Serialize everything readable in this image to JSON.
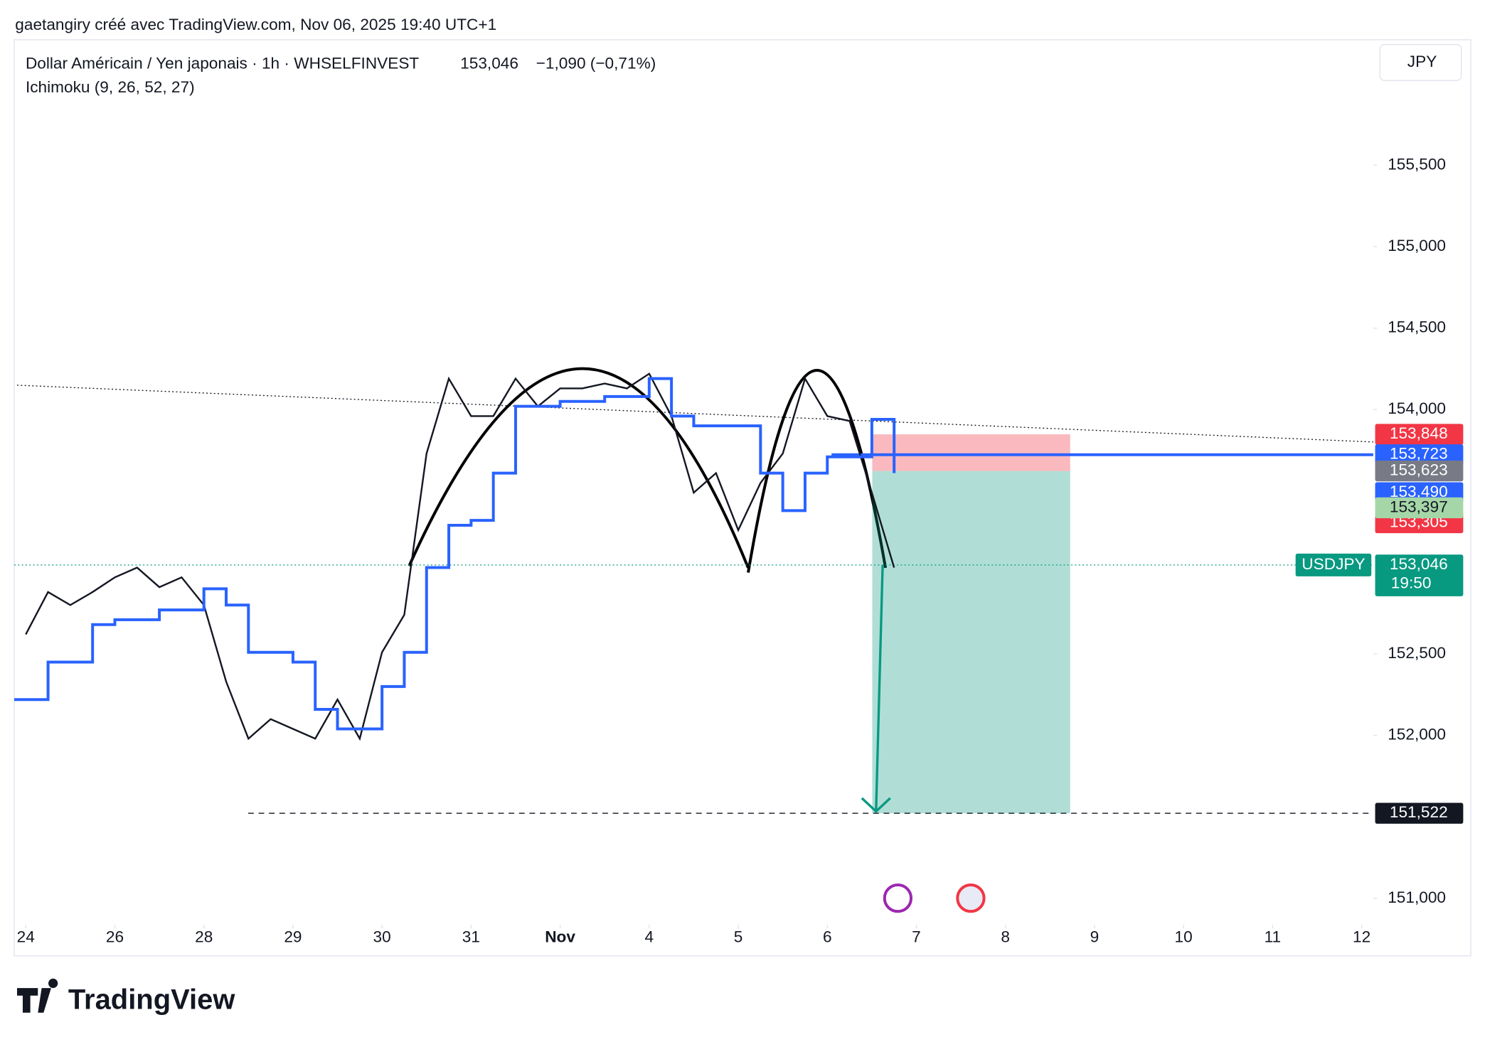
{
  "header": {
    "credit": "gaetangiry créé avec TradingView.com, Nov 06, 2025 19:40 UTC+1",
    "symbol": "Dollar Américain / Yen japonais · 1h · WHSELFINVEST",
    "last": "153,046",
    "change": "−1,090 (−0,71%)",
    "indicator": "Ichimoku (9, 26, 52, 27)",
    "currency": "JPY",
    "ticker": "USDJPY",
    "logo": "TradingView"
  },
  "chart_data": {
    "type": "line",
    "xlim": [
      -0.13,
      15.13
    ],
    "xticks": [
      {
        "value": 0,
        "label": "24"
      },
      {
        "value": 1,
        "label": "26"
      },
      {
        "value": 2,
        "label": "28"
      },
      {
        "value": 3,
        "label": "29"
      },
      {
        "value": 4,
        "label": "30"
      },
      {
        "value": 5,
        "label": "31"
      },
      {
        "value": 6,
        "label": "Nov"
      },
      {
        "value": 7,
        "label": "4"
      },
      {
        "value": 8,
        "label": "5"
      },
      {
        "value": 9,
        "label": "6"
      },
      {
        "value": 10,
        "label": "7"
      },
      {
        "value": 11,
        "label": "8"
      },
      {
        "value": 12,
        "label": "9"
      },
      {
        "value": 13,
        "label": "10"
      },
      {
        "value": 14,
        "label": "11"
      },
      {
        "value": 15,
        "label": "12"
      }
    ],
    "ylim": [
      150.85,
      156.27
    ],
    "yticks": [
      {
        "value": 151,
        "label": "151,000"
      },
      {
        "value": 152,
        "label": "152,000"
      },
      {
        "value": 152.5,
        "label": "152,500"
      },
      {
        "value": 154,
        "label": "154,000"
      },
      {
        "value": 154.5,
        "label": "154,500"
      },
      {
        "value": 155,
        "label": "155,000"
      },
      {
        "value": 155.5,
        "label": "155,500"
      }
    ],
    "series": [
      {
        "name": "USDJPY",
        "color": "#131722",
        "x": [
          0,
          0.25,
          0.5,
          0.75,
          1,
          1.25,
          1.5,
          1.75,
          2,
          2.25,
          2.5,
          2.75,
          3,
          3.25,
          3.5,
          3.75,
          4,
          4.25,
          4.5,
          4.75,
          5,
          5.25,
          5.5,
          5.75,
          6,
          6.25,
          6.5,
          6.75,
          7,
          7.25,
          7.5,
          7.75,
          8,
          8.25,
          8.5,
          8.75,
          9,
          9.25,
          9.5,
          9.75
        ],
        "values": [
          152.62,
          152.88,
          152.8,
          152.88,
          152.97,
          153.03,
          152.91,
          152.97,
          152.8,
          152.33,
          151.98,
          152.1,
          152.04,
          151.98,
          152.22,
          151.98,
          152.51,
          152.74,
          153.73,
          154.19,
          153.96,
          153.96,
          154.19,
          154.02,
          154.13,
          154.13,
          154.16,
          154.13,
          154.22,
          153.96,
          153.49,
          153.61,
          153.26,
          153.55,
          153.73,
          154.19,
          153.96,
          153.93,
          153.49,
          153.03
        ]
      },
      {
        "name": "Kijun",
        "color": "#2962ff",
        "x": [
          -0.13,
          0.25,
          0.75,
          1,
          1.5,
          2,
          2.25,
          2.5,
          3,
          3.25,
          3.5,
          4,
          4.25,
          4.5,
          4.75,
          5,
          5.25,
          5.5,
          6,
          6.5,
          7,
          7.25,
          7.5,
          8,
          8.25,
          8.5,
          8.75,
          9,
          9.25,
          9.5,
          9.75
        ],
        "values": [
          152.22,
          152.45,
          152.68,
          152.71,
          152.77,
          152.9,
          152.8,
          152.51,
          152.45,
          152.16,
          152.04,
          152.3,
          152.51,
          153.03,
          153.29,
          153.32,
          153.61,
          154.02,
          154.05,
          154.08,
          154.19,
          153.96,
          153.9,
          153.9,
          153.61,
          153.38,
          153.61,
          153.71,
          153.71,
          153.94,
          153.61
        ]
      }
    ],
    "position": {
      "stop": 153.848,
      "entry": 153.623,
      "target": 151.522
    },
    "price_labels": [
      {
        "value": 153.49,
        "label": "153,490",
        "color": "#2962ff"
      },
      {
        "value": 153.305,
        "label": "153,305",
        "color": "#f23645"
      },
      {
        "value": 153.848,
        "label": "153,848",
        "color": "#f23645"
      },
      {
        "value": 153.723,
        "label": "153,723",
        "color": "#2962ff"
      },
      {
        "value": 153.623,
        "label": "153,623",
        "color": "#787b86"
      },
      {
        "value": 153.397,
        "label": "153,397",
        "color": "#a5d6a7"
      },
      {
        "value": 151.522,
        "label": "151,522",
        "color": "#131722"
      }
    ],
    "last_price": {
      "value": 153.046,
      "label": "153,046",
      "time": "19:50",
      "color": "#089981"
    }
  }
}
